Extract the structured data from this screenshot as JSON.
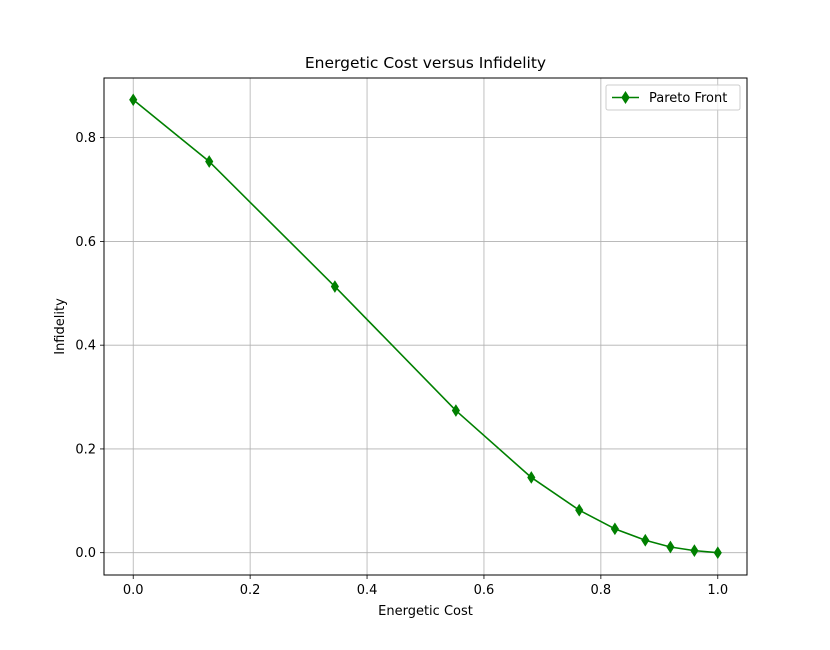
{
  "chart_data": {
    "type": "line",
    "title": "Energetic Cost versus Infidelity",
    "xlabel": "Energetic Cost",
    "ylabel": "Infidelity",
    "xlim": [
      -0.05,
      1.05
    ],
    "ylim": [
      -0.043,
      0.915
    ],
    "xticks": [
      0.0,
      0.2,
      0.4,
      0.6,
      0.8,
      1.0
    ],
    "xtick_labels": [
      "0.0",
      "0.2",
      "0.4",
      "0.6",
      "0.8",
      "1.0"
    ],
    "yticks": [
      0.0,
      0.2,
      0.4,
      0.6,
      0.8
    ],
    "ytick_labels": [
      "0.0",
      "0.2",
      "0.4",
      "0.6",
      "0.8"
    ],
    "grid": true,
    "legend_position": "top-right",
    "series": [
      {
        "name": "Pareto Front",
        "color": "#008000",
        "marker": "thin-diamond",
        "points": [
          {
            "x": 0.0,
            "y": 0.873
          },
          {
            "x": 0.13,
            "y": 0.754
          },
          {
            "x": 0.345,
            "y": 0.513
          },
          {
            "x": 0.552,
            "y": 0.274
          },
          {
            "x": 0.681,
            "y": 0.145
          },
          {
            "x": 0.763,
            "y": 0.082
          },
          {
            "x": 0.824,
            "y": 0.046
          },
          {
            "x": 0.876,
            "y": 0.024
          },
          {
            "x": 0.919,
            "y": 0.011
          },
          {
            "x": 0.96,
            "y": 0.004
          },
          {
            "x": 1.0,
            "y": 0.0
          }
        ]
      }
    ]
  }
}
